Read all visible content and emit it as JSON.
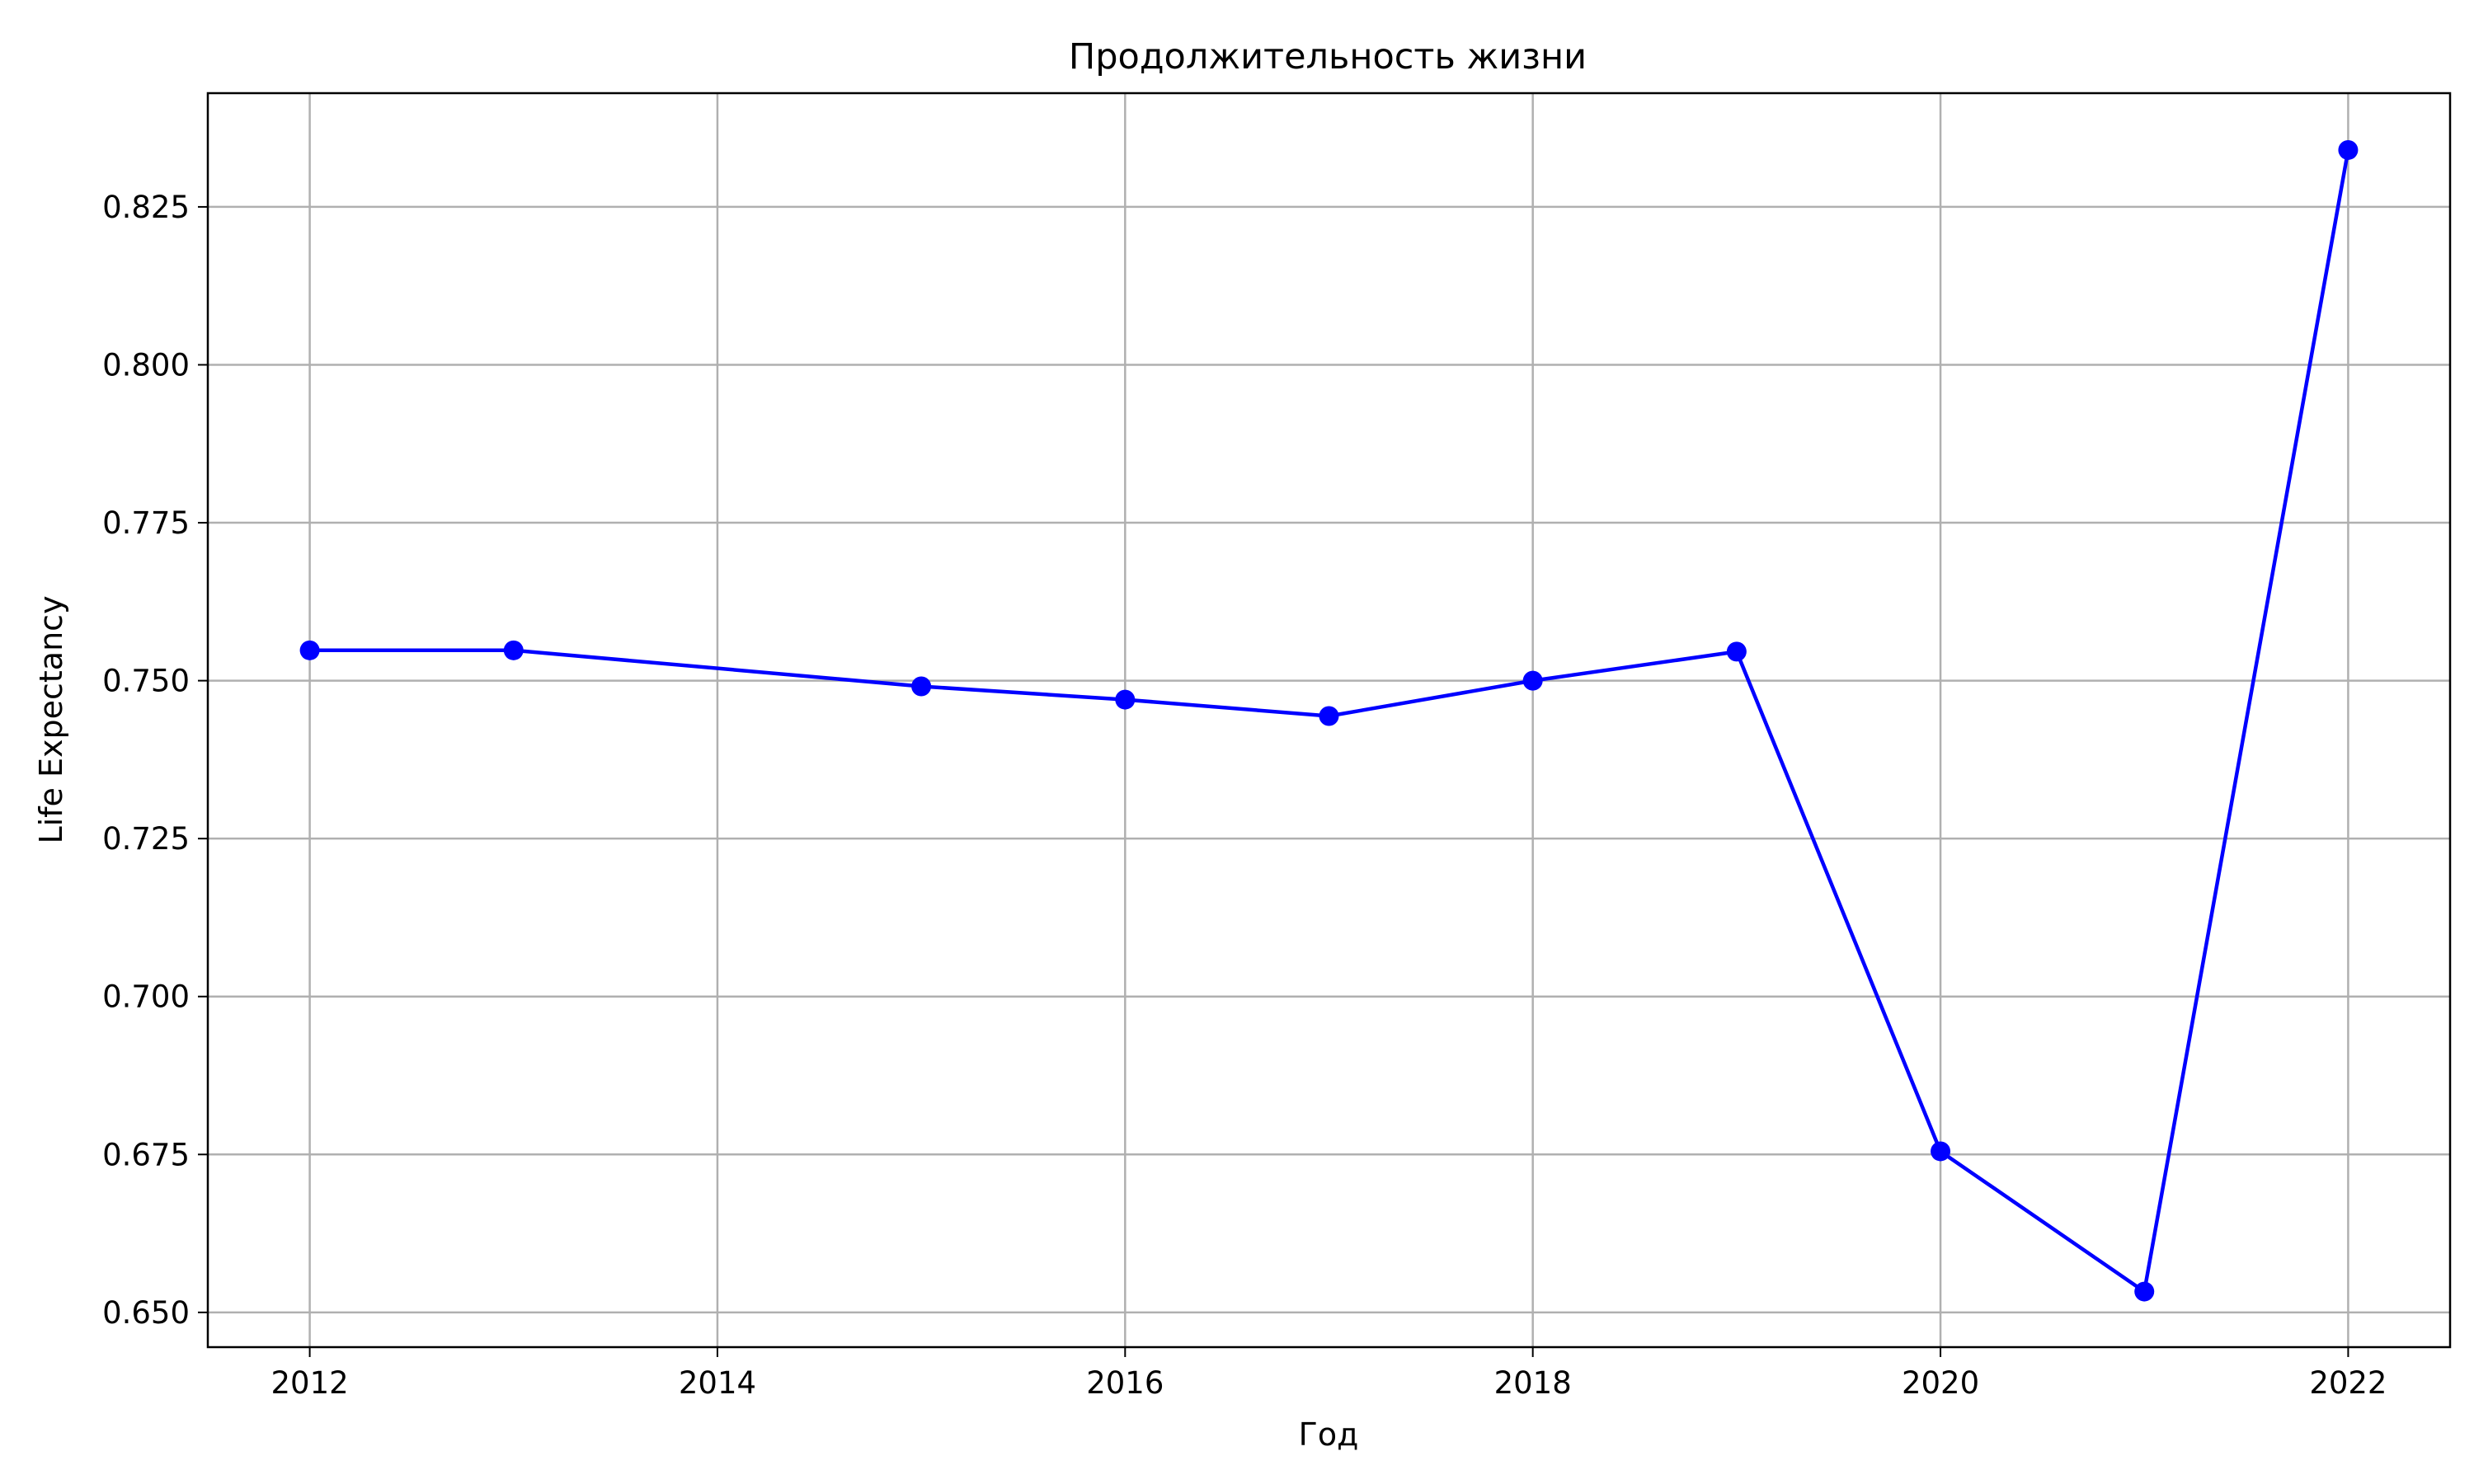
{
  "chart_data": {
    "type": "line",
    "title": "Продолжительность жизни",
    "xlabel": "Год",
    "ylabel": "Life Expectancy",
    "x": [
      2012,
      2013,
      2015,
      2016,
      2017,
      2018,
      2019,
      2020,
      2021,
      2022
    ],
    "series": [
      {
        "values": [
          0.7548,
          0.7548,
          0.7491,
          0.747,
          0.7444,
          0.75,
          0.7546,
          0.6755,
          0.6533,
          0.834
        ],
        "color": "#0000ff",
        "marker": "circle"
      }
    ],
    "xlim": [
      2011.5,
      2022.5
    ],
    "ylim": [
      0.6445,
      0.843
    ],
    "xticks": [
      2012,
      2014,
      2016,
      2018,
      2020,
      2022
    ],
    "xtick_labels": [
      "2012",
      "2014",
      "2016",
      "2018",
      "2020",
      "2022"
    ],
    "yticks": [
      0.65,
      0.675,
      0.7,
      0.725,
      0.75,
      0.775,
      0.8,
      0.825
    ],
    "ytick_labels": [
      "0.650",
      "0.675",
      "0.700",
      "0.725",
      "0.750",
      "0.775",
      "0.800",
      "0.825"
    ],
    "grid": true
  }
}
